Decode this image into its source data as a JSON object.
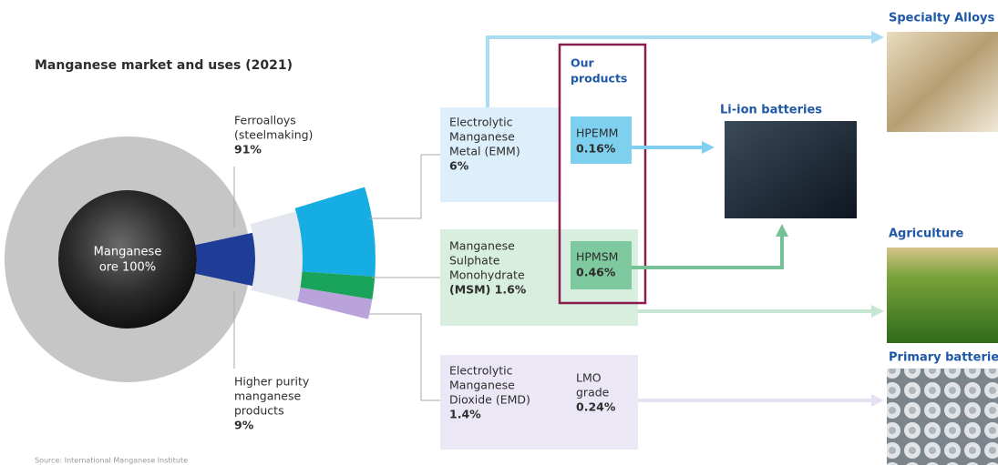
{
  "header": {
    "title": "Manganese market and uses (2021)",
    "source": "Source: International Manganese Institute"
  },
  "donut": {
    "center_lines": [
      "Manganese",
      "ore 100%"
    ]
  },
  "segments": [
    {
      "lines": [
        "Ferroalloys",
        "(steelmaking)",
        "91%"
      ]
    },
    {
      "lines": [
        "Higher purity",
        "manganese",
        "products",
        "9%"
      ]
    }
  ],
  "our_products": [
    "Our",
    "products"
  ],
  "products": [
    {
      "lines": [
        "Electrolytic",
        "Manganese",
        "Metal (EMM)",
        "6%"
      ],
      "grade": [
        "HPEMM",
        "0.16%"
      ]
    },
    {
      "lines": [
        "Manganese",
        "Sulphate",
        "Monohydrate",
        "(MSM) 1.6%"
      ],
      "grade": [
        "HPMSM",
        "0.46%"
      ]
    },
    {
      "lines": [
        "Electrolytic",
        "Manganese",
        "Dioxide (EMD)",
        "1.4%"
      ],
      "grade": [
        "LMO",
        "grade",
        "0.24%"
      ]
    }
  ],
  "uses": {
    "li_ion": "Li-ion batteries",
    "alloys": "Specialty Alloys",
    "agriculture": "Agriculture",
    "primary": "Primary batteries"
  }
}
